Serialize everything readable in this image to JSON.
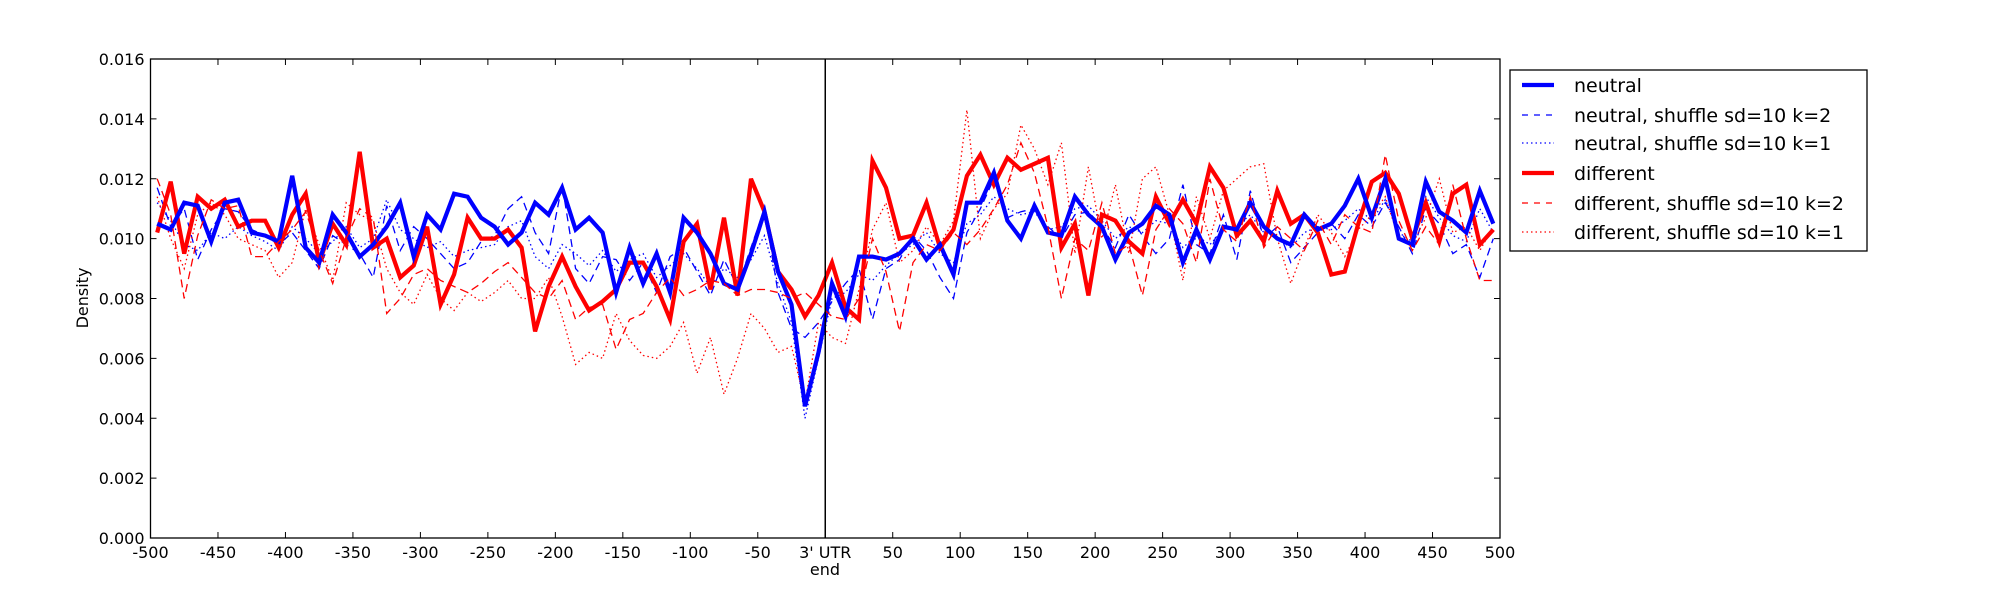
{
  "chart_data": {
    "type": "line",
    "title": "",
    "xlabel": "end",
    "ylabel": "Density",
    "xlim": [
      -500,
      500
    ],
    "ylim": [
      0,
      0.016
    ],
    "grid": false,
    "legend_position": "outside-right-top",
    "x": {
      "start": -495,
      "step": 10,
      "count": 100
    },
    "vline_at": 0,
    "xticks": [
      {
        "value": -500,
        "label": "-500"
      },
      {
        "value": -450,
        "label": "-450"
      },
      {
        "value": -400,
        "label": "-400"
      },
      {
        "value": -350,
        "label": "-350"
      },
      {
        "value": -300,
        "label": "-300"
      },
      {
        "value": -250,
        "label": "-250"
      },
      {
        "value": -200,
        "label": "-200"
      },
      {
        "value": -150,
        "label": "-150"
      },
      {
        "value": -100,
        "label": "-100"
      },
      {
        "value": -50,
        "label": "-50"
      },
      {
        "value": 0,
        "label": "3' UTR"
      },
      {
        "value": 50,
        "label": "50"
      },
      {
        "value": 100,
        "label": "100"
      },
      {
        "value": 150,
        "label": "150"
      },
      {
        "value": 200,
        "label": "200"
      },
      {
        "value": 250,
        "label": "250"
      },
      {
        "value": 300,
        "label": "300"
      },
      {
        "value": 350,
        "label": "350"
      },
      {
        "value": 400,
        "label": "400"
      },
      {
        "value": 450,
        "label": "450"
      },
      {
        "value": 500,
        "label": "500"
      }
    ],
    "yticks": [
      {
        "value": 0,
        "label": "0.000"
      },
      {
        "value": 0.002,
        "label": "0.002"
      },
      {
        "value": 0.004,
        "label": "0.004"
      },
      {
        "value": 0.006,
        "label": "0.006"
      },
      {
        "value": 0.008,
        "label": "0.008"
      },
      {
        "value": 0.01,
        "label": "0.010"
      },
      {
        "value": 0.012,
        "label": "0.012"
      },
      {
        "value": 0.014,
        "label": "0.014"
      },
      {
        "value": 0.016,
        "label": "0.016"
      }
    ],
    "series": [
      {
        "name": "neutral",
        "color": "#0000ff",
        "style": "solid",
        "weight": "thick",
        "values": [
          0.0105,
          0.0103,
          0.0112,
          0.0111,
          0.0099,
          0.0112,
          0.0113,
          0.0102,
          0.0101,
          0.0099,
          0.0121,
          0.0097,
          0.0092,
          0.0108,
          0.0102,
          0.0094,
          0.0098,
          0.0104,
          0.0112,
          0.0094,
          0.0108,
          0.0103,
          0.0115,
          0.0114,
          0.0107,
          0.0104,
          0.0098,
          0.0102,
          0.0112,
          0.0108,
          0.0117,
          0.0103,
          0.0107,
          0.0102,
          0.0082,
          0.0097,
          0.0085,
          0.0095,
          0.0082,
          0.0107,
          0.0102,
          0.0095,
          0.0085,
          0.0083,
          0.0095,
          0.0109,
          0.0089,
          0.0078,
          0.0044,
          0.0062,
          0.0085,
          0.0074,
          0.0094,
          0.0094,
          0.0093,
          0.0095,
          0.01,
          0.0093,
          0.0098,
          0.0088,
          0.0112,
          0.0112,
          0.0122,
          0.0106,
          0.01,
          0.0111,
          0.0102,
          0.0101,
          0.0114,
          0.0108,
          0.0104,
          0.0093,
          0.0102,
          0.0105,
          0.0111,
          0.0108,
          0.0092,
          0.0103,
          0.0093,
          0.0104,
          0.0103,
          0.0112,
          0.0104,
          0.01,
          0.0098,
          0.0108,
          0.0103,
          0.0105,
          0.0111,
          0.012,
          0.0107,
          0.012,
          0.01,
          0.0098,
          0.0119,
          0.0109,
          0.0106,
          0.0102,
          0.0116,
          0.0105
        ]
      },
      {
        "name": "neutral, shuffle sd=10 k=2",
        "color": "#0000ff",
        "style": "dashed",
        "weight": "thin",
        "values": [
          0.0117,
          0.0104,
          0.011,
          0.0093,
          0.0103,
          0.011,
          0.0109,
          0.0103,
          0.0101,
          0.0098,
          0.0102,
          0.0096,
          0.009,
          0.0101,
          0.0098,
          0.0095,
          0.0087,
          0.0111,
          0.0096,
          0.0104,
          0.01,
          0.0095,
          0.009,
          0.0092,
          0.0099,
          0.0101,
          0.011,
          0.0114,
          0.0102,
          0.0095,
          0.0118,
          0.009,
          0.0085,
          0.0094,
          0.0093,
          0.0086,
          0.0092,
          0.0082,
          0.0094,
          0.0097,
          0.0089,
          0.0081,
          0.0093,
          0.0084,
          0.0097,
          0.011,
          0.0082,
          0.007,
          0.0067,
          0.0072,
          0.0079,
          0.0085,
          0.009,
          0.0073,
          0.009,
          0.0093,
          0.0101,
          0.0096,
          0.0087,
          0.008,
          0.0102,
          0.011,
          0.012,
          0.0107,
          0.0109,
          0.011,
          0.0104,
          0.01,
          0.0108,
          0.0109,
          0.0104,
          0.0097,
          0.0108,
          0.0101,
          0.0095,
          0.01,
          0.0118,
          0.0098,
          0.0095,
          0.0108,
          0.0093,
          0.0116,
          0.01,
          0.0104,
          0.0092,
          0.0097,
          0.0102,
          0.0105,
          0.01,
          0.0108,
          0.0104,
          0.0112,
          0.0104,
          0.0095,
          0.011,
          0.0105,
          0.0095,
          0.0098,
          0.0087,
          0.01
        ]
      },
      {
        "name": "neutral, shuffle sd=10 k=1",
        "color": "#0000ff",
        "style": "dotted",
        "weight": "thin",
        "values": [
          0.0112,
          0.0106,
          0.0098,
          0.0096,
          0.0102,
          0.01,
          0.0104,
          0.0101,
          0.0099,
          0.0096,
          0.0104,
          0.01,
          0.0095,
          0.0099,
          0.0104,
          0.0097,
          0.01,
          0.0113,
          0.0103,
          0.01,
          0.0097,
          0.0099,
          0.0094,
          0.0096,
          0.0097,
          0.0098,
          0.0104,
          0.0106,
          0.0094,
          0.009,
          0.0098,
          0.0095,
          0.0091,
          0.0096,
          0.0089,
          0.0093,
          0.0095,
          0.0087,
          0.0091,
          0.0095,
          0.009,
          0.0084,
          0.009,
          0.0087,
          0.0093,
          0.0101,
          0.0085,
          0.0072,
          0.004,
          0.006,
          0.008,
          0.0082,
          0.0088,
          0.0086,
          0.0091,
          0.0095,
          0.0098,
          0.0102,
          0.0095,
          0.0092,
          0.0105,
          0.0108,
          0.0114,
          0.011,
          0.0108,
          0.0109,
          0.0103,
          0.0104,
          0.011,
          0.0111,
          0.0106,
          0.01,
          0.0104,
          0.0102,
          0.0106,
          0.0105,
          0.0097,
          0.0101,
          0.0098,
          0.0103,
          0.0104,
          0.0108,
          0.0102,
          0.01,
          0.0097,
          0.0102,
          0.0104,
          0.0103,
          0.0106,
          0.011,
          0.0106,
          0.0113,
          0.0102,
          0.0099,
          0.0114,
          0.0107,
          0.0101,
          0.0099,
          0.011,
          0.0102
        ]
      },
      {
        "name": "different",
        "color": "#ff0000",
        "style": "solid",
        "weight": "thick",
        "values": [
          0.0102,
          0.0119,
          0.0095,
          0.0114,
          0.011,
          0.0113,
          0.0104,
          0.0106,
          0.0106,
          0.0097,
          0.0108,
          0.0115,
          0.0092,
          0.0105,
          0.0098,
          0.0129,
          0.0097,
          0.01,
          0.0087,
          0.0091,
          0.0104,
          0.0078,
          0.0088,
          0.0107,
          0.01,
          0.01,
          0.0103,
          0.0097,
          0.0069,
          0.0084,
          0.0094,
          0.0084,
          0.0076,
          0.0079,
          0.0083,
          0.0092,
          0.0092,
          0.0084,
          0.0073,
          0.0099,
          0.0105,
          0.0083,
          0.0107,
          0.0081,
          0.012,
          0.0109,
          0.0089,
          0.0083,
          0.0074,
          0.0081,
          0.0092,
          0.0077,
          0.0073,
          0.0126,
          0.0117,
          0.01,
          0.0101,
          0.0112,
          0.0097,
          0.0103,
          0.0121,
          0.0128,
          0.0118,
          0.0127,
          0.0123,
          0.0125,
          0.0127,
          0.0097,
          0.0105,
          0.0081,
          0.0108,
          0.0106,
          0.0099,
          0.0095,
          0.0114,
          0.0105,
          0.0113,
          0.0105,
          0.0124,
          0.0117,
          0.0101,
          0.0106,
          0.0099,
          0.0116,
          0.0105,
          0.0108,
          0.0102,
          0.0088,
          0.0089,
          0.0105,
          0.0119,
          0.0122,
          0.0115,
          0.01,
          0.0112,
          0.0099,
          0.0115,
          0.0118,
          0.0098,
          0.0103
        ]
      },
      {
        "name": "different, shuffle sd=10 k=2",
        "color": "#ff0000",
        "style": "dashed",
        "weight": "thin",
        "values": [
          0.012,
          0.0108,
          0.008,
          0.0101,
          0.0113,
          0.011,
          0.0111,
          0.0094,
          0.0094,
          0.0099,
          0.0103,
          0.0109,
          0.0096,
          0.0085,
          0.01,
          0.011,
          0.0107,
          0.0075,
          0.008,
          0.0088,
          0.009,
          0.0086,
          0.0084,
          0.0082,
          0.0085,
          0.0089,
          0.0092,
          0.0087,
          0.0082,
          0.008,
          0.0086,
          0.0073,
          0.0077,
          0.0078,
          0.0063,
          0.0073,
          0.0075,
          0.0082,
          0.0087,
          0.0081,
          0.0083,
          0.0086,
          0.0085,
          0.0081,
          0.0083,
          0.0083,
          0.0082,
          0.008,
          0.0082,
          0.0078,
          0.0074,
          0.0073,
          0.008,
          0.01,
          0.0089,
          0.0069,
          0.0092,
          0.0098,
          0.0096,
          0.0102,
          0.0098,
          0.0103,
          0.011,
          0.0118,
          0.0132,
          0.0122,
          0.0104,
          0.008,
          0.01,
          0.0096,
          0.0112,
          0.0095,
          0.0098,
          0.0081,
          0.0103,
          0.011,
          0.0105,
          0.0092,
          0.012,
          0.0103,
          0.0099,
          0.0114,
          0.0097,
          0.0104,
          0.01,
          0.0096,
          0.0106,
          0.0098,
          0.0108,
          0.0104,
          0.0102,
          0.0128,
          0.0106,
          0.0096,
          0.0104,
          0.0098,
          0.0118,
          0.01,
          0.0086,
          0.0086
        ]
      },
      {
        "name": "different, shuffle sd=10 k=1",
        "color": "#ff0000",
        "style": "dotted",
        "weight": "thin",
        "values": [
          0.0114,
          0.01,
          0.009,
          0.0108,
          0.0112,
          0.0108,
          0.01,
          0.0098,
          0.0096,
          0.0087,
          0.0092,
          0.011,
          0.0098,
          0.0086,
          0.0112,
          0.0108,
          0.0106,
          0.009,
          0.0082,
          0.0078,
          0.0088,
          0.008,
          0.0076,
          0.0082,
          0.0079,
          0.0082,
          0.0086,
          0.008,
          0.008,
          0.0087,
          0.0074,
          0.0058,
          0.0062,
          0.006,
          0.0075,
          0.0066,
          0.0061,
          0.006,
          0.0064,
          0.0072,
          0.0055,
          0.0067,
          0.0048,
          0.006,
          0.0075,
          0.007,
          0.0062,
          0.0064,
          0.0045,
          0.0072,
          0.0067,
          0.0065,
          0.0083,
          0.0103,
          0.0112,
          0.0092,
          0.0096,
          0.0104,
          0.0098,
          0.0106,
          0.0143,
          0.01,
          0.011,
          0.0115,
          0.0138,
          0.013,
          0.0118,
          0.0132,
          0.0095,
          0.0124,
          0.01,
          0.0118,
          0.0095,
          0.012,
          0.0124,
          0.0108,
          0.0086,
          0.0114,
          0.01,
          0.0116,
          0.012,
          0.0124,
          0.0125,
          0.01,
          0.0085,
          0.0097,
          0.0108,
          0.0102,
          0.0094,
          0.0103,
          0.0108,
          0.0114,
          0.01,
          0.0098,
          0.0107,
          0.012,
          0.0102,
          0.0104,
          0.0096,
          0.0104
        ]
      }
    ]
  }
}
